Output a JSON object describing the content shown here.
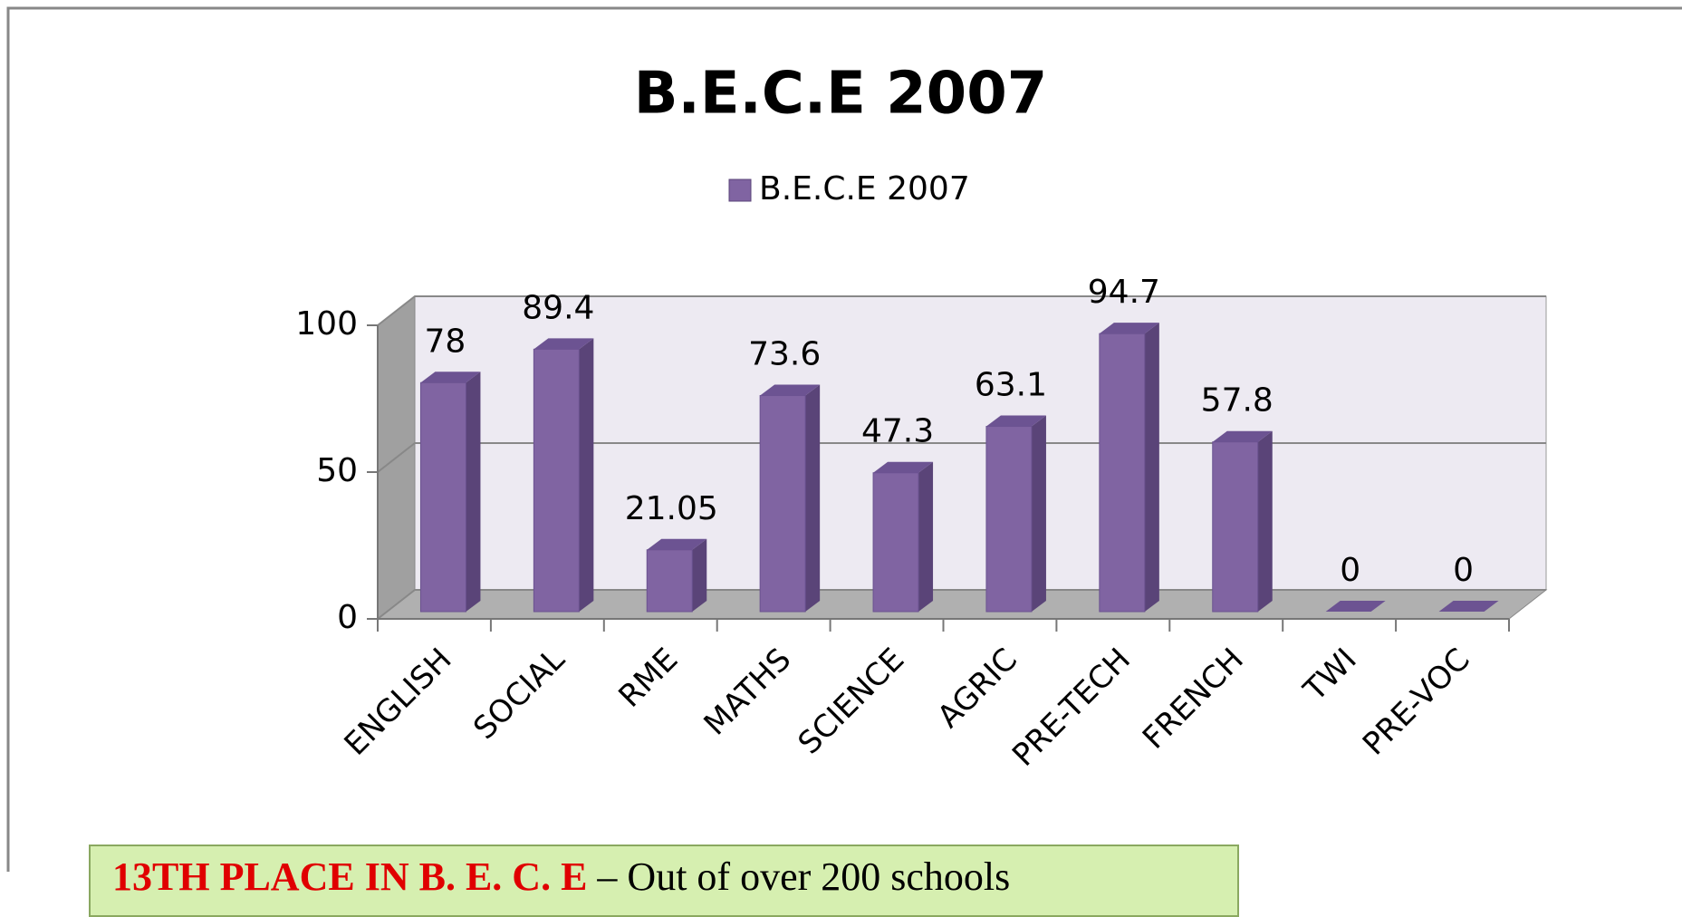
{
  "chart_data": {
    "type": "bar",
    "title": "B.E.C.E 2007",
    "categories": [
      "ENGLISH",
      "SOCIAL",
      "RME",
      "MATHS",
      "SCIENCE",
      "AGRIC",
      "PRE-TECH",
      "FRENCH",
      "TWI",
      "PRE-VOC"
    ],
    "series": [
      {
        "name": "B.E.C.E 2007",
        "color": "#8064a2",
        "values": [
          78,
          89.4,
          21.05,
          73.6,
          47.3,
          63.1,
          94.7,
          57.8,
          0,
          0
        ]
      }
    ],
    "ylim": [
      0,
      100
    ],
    "yticks": [
      0,
      50,
      100
    ],
    "grid": true,
    "legend": "top",
    "annotation": {
      "highlight": "13TH PLACE IN B. E. C. E",
      "text": "– Out of over 200 schools"
    }
  }
}
